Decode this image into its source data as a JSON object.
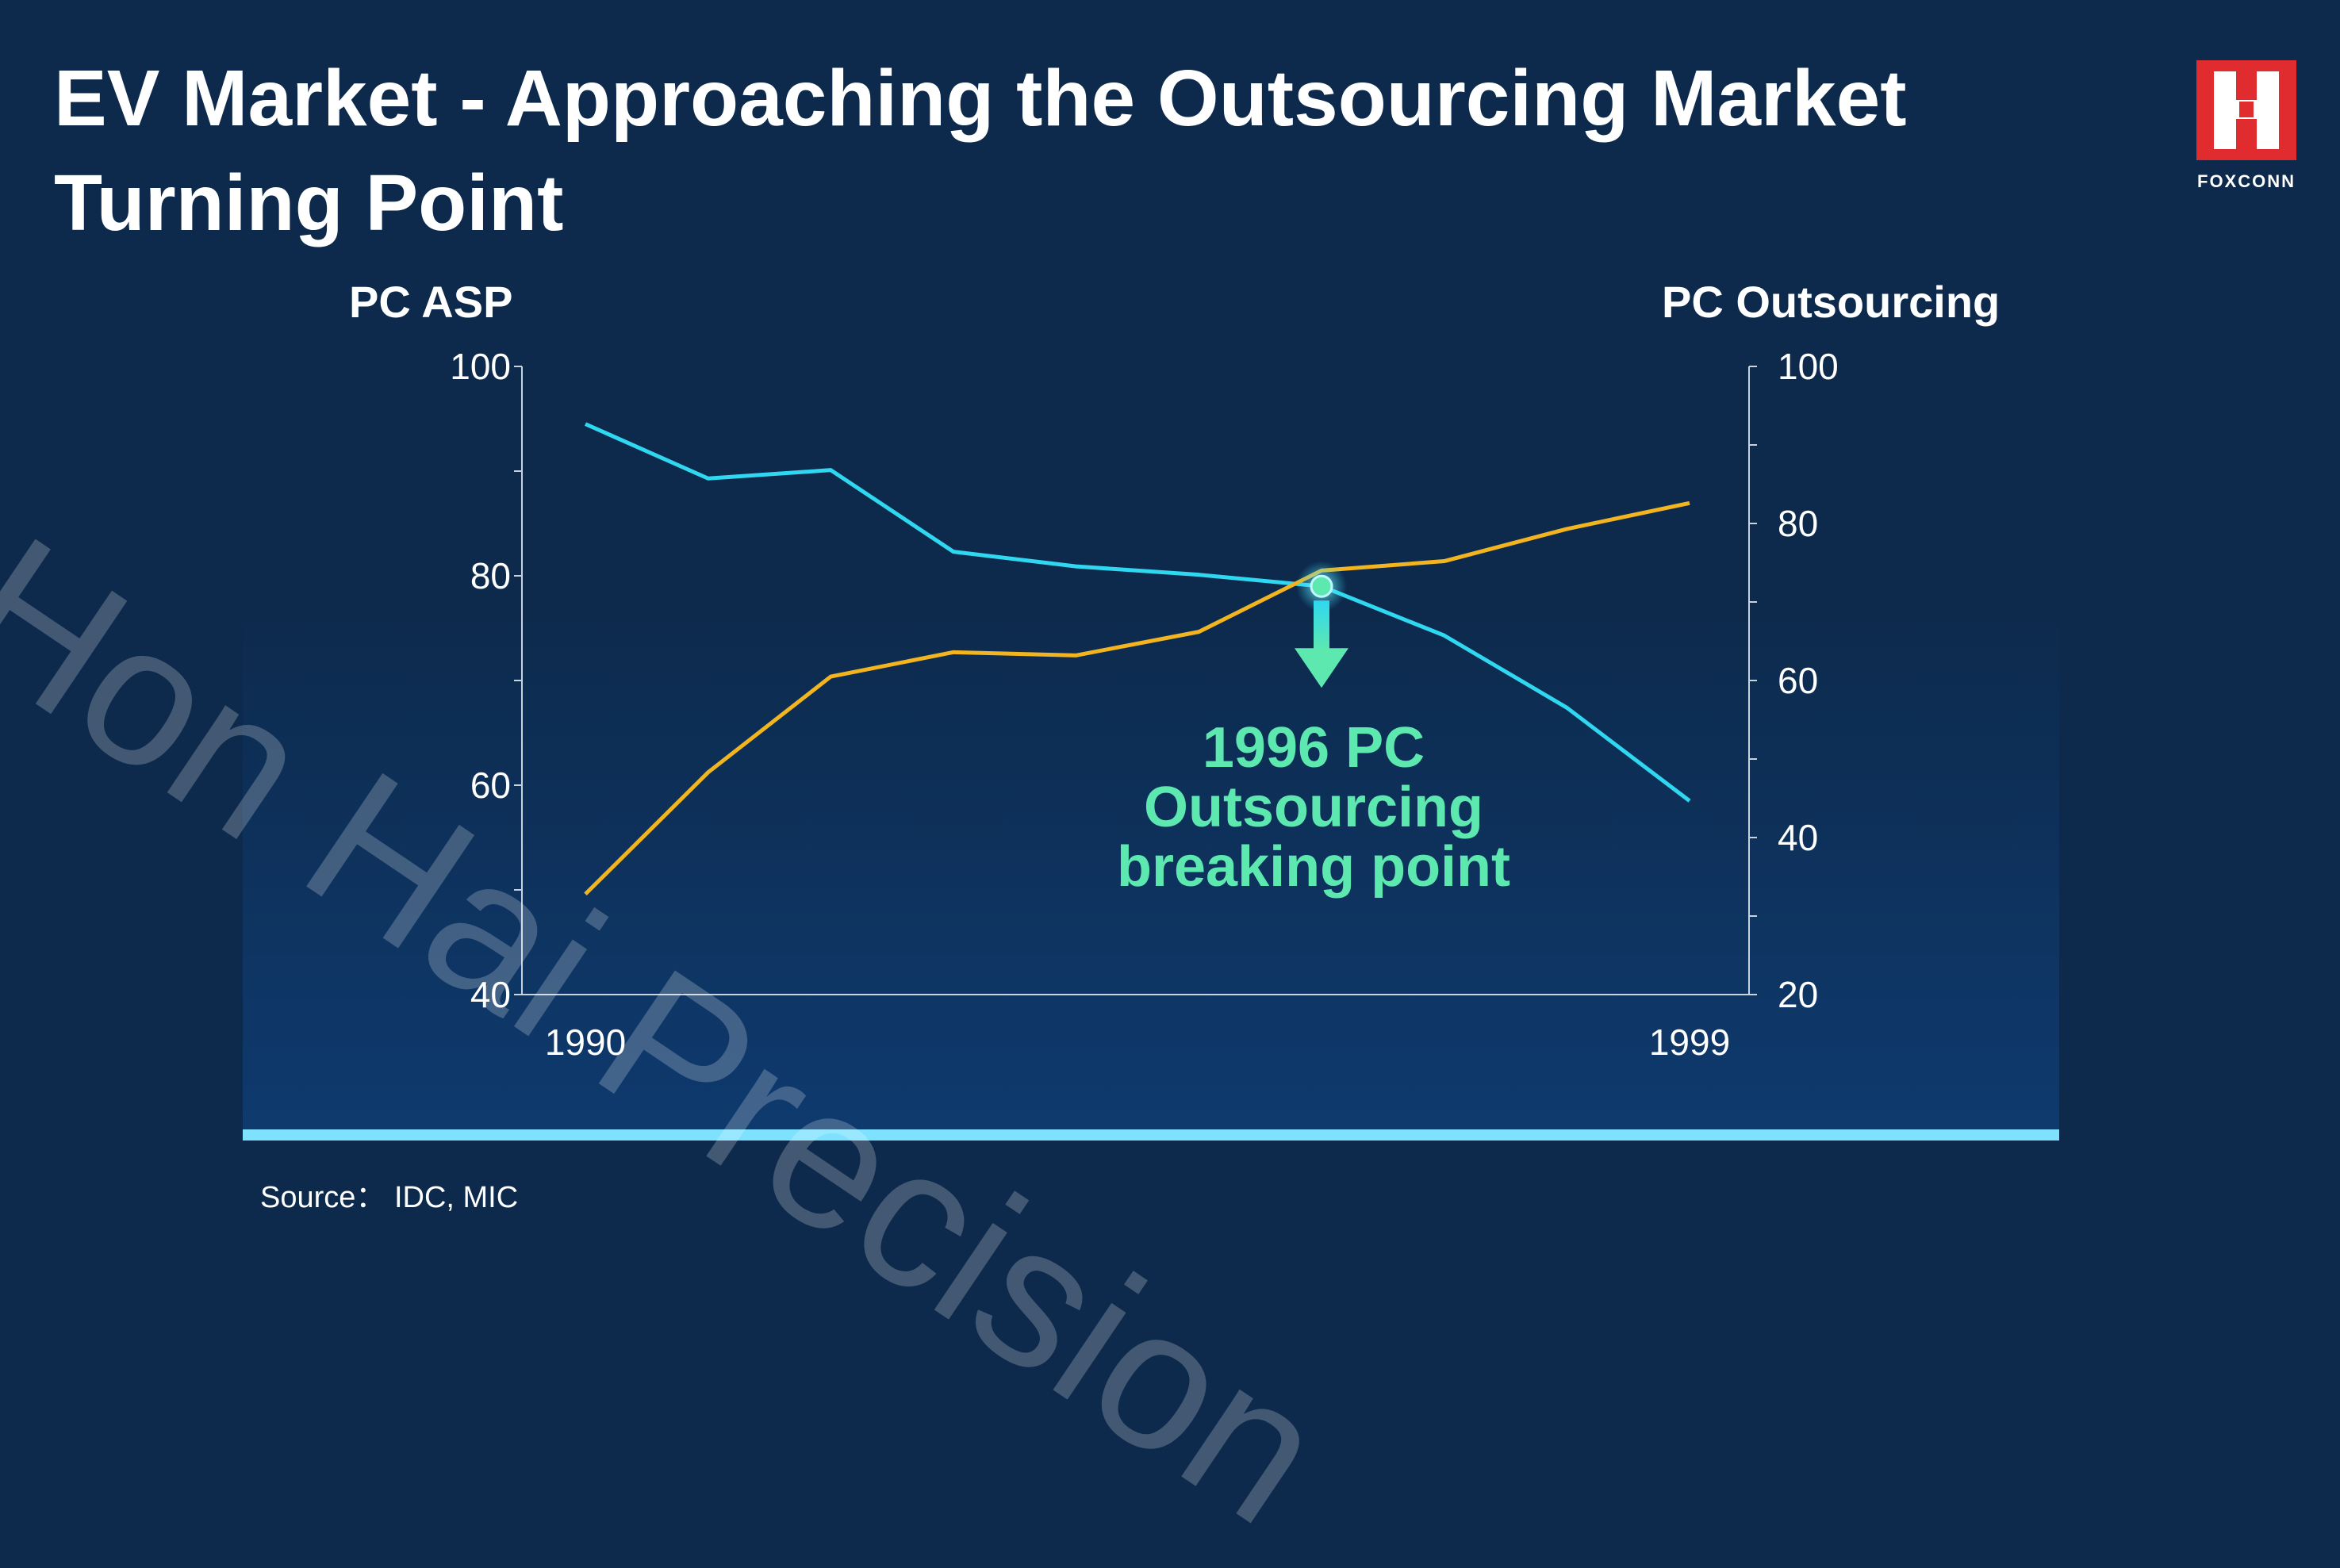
{
  "slide": {
    "title_line1": "EV Market - Approaching the Outsourcing Market",
    "title_line2": "Turning Point",
    "source": "Source： IDC, MIC",
    "watermark": "Hon Hai Precision",
    "brand": "FOXCONN",
    "colors": {
      "background": "#0d2a4c",
      "asp_line": "#2fd8f0",
      "outsourcing_line": "#f2b51f",
      "annotation": "#5de8b0",
      "accent_bar": "#7ee2ff",
      "logo_red": "#e02b2f"
    }
  },
  "chart_data": {
    "type": "line",
    "left_axis_title": "PC ASP",
    "right_axis_title": "PC Outsourcing",
    "x": [
      1990,
      1991,
      1992,
      1993,
      1994,
      1995,
      1996,
      1997,
      1998,
      1999
    ],
    "x_tick_labels": [
      "1990",
      "1999"
    ],
    "ylim_left": [
      40,
      100
    ],
    "ylim_right": [
      20,
      100
    ],
    "left_ticks": [
      "100",
      "80",
      "60",
      "40"
    ],
    "right_ticks": [
      "100",
      "80",
      "60",
      "40",
      "20"
    ],
    "series": [
      {
        "axis": "left",
        "color": "#2fd8f0",
        "values": [
          94.5,
          89.3,
          90.1,
          82.3,
          80.9,
          80.1,
          79.0,
          74.3,
          67.4,
          58.5
        ]
      },
      {
        "axis": "right",
        "color": "#f2b51f",
        "values": [
          32.8,
          48.3,
          60.5,
          63.6,
          63.2,
          66.2,
          74.0,
          75.2,
          79.3,
          82.6
        ]
      }
    ],
    "annotation": {
      "x": 1996,
      "lines": [
        "1996 PC",
        "Outsourcing",
        "breaking point"
      ]
    },
    "grid": false
  }
}
